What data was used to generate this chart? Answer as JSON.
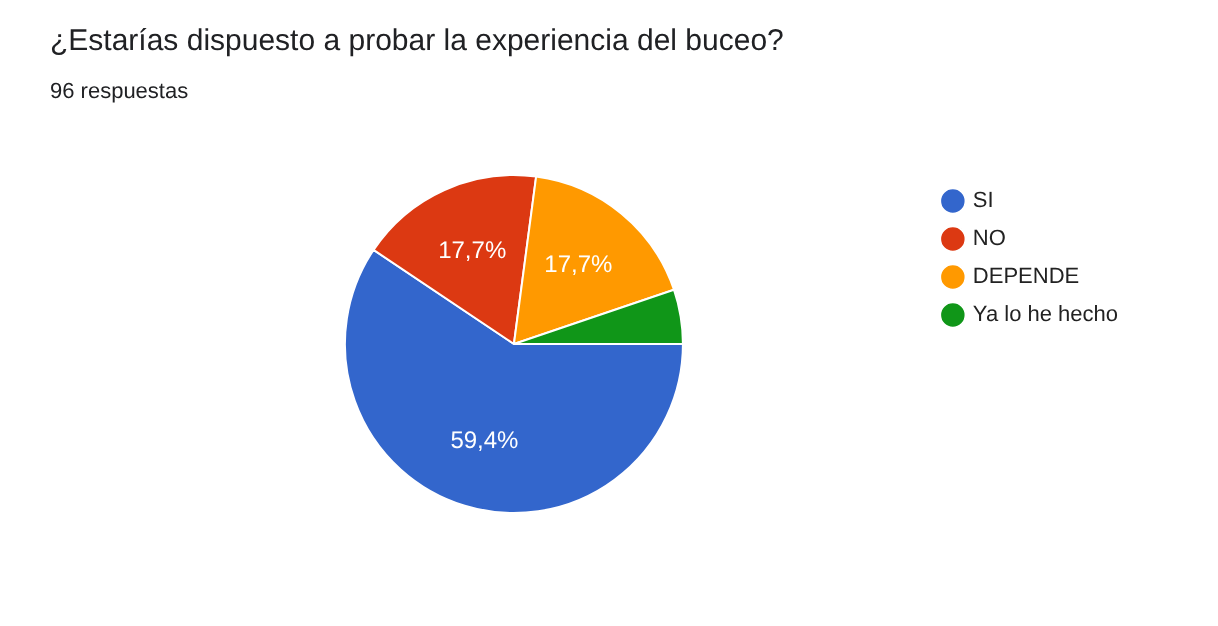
{
  "chart_data": {
    "type": "pie",
    "title": "¿Estarías dispuesto a probar la experiencia del buceo?",
    "subtitle": "96 respuestas",
    "categories": [
      "SI",
      "NO",
      "DEPENDE",
      "Ya lo he hecho"
    ],
    "values": [
      59.4,
      17.7,
      17.7,
      5.2
    ],
    "colors": [
      "#3366cc",
      "#dc3912",
      "#ff9900",
      "#109618"
    ],
    "value_labels": [
      "59,4%",
      "17,7%",
      "17,7%",
      null
    ],
    "legend": "right"
  }
}
